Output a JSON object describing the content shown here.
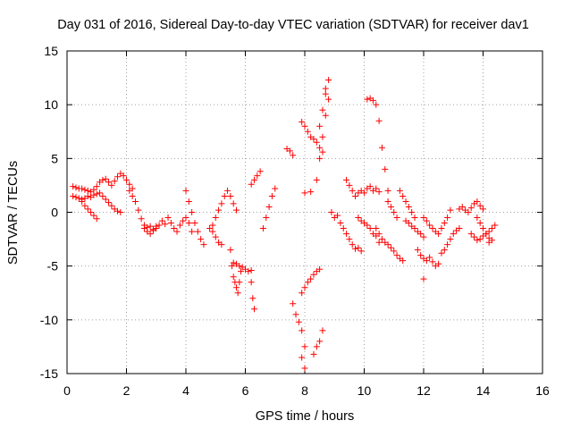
{
  "chart_data": {
    "type": "scatter",
    "title": "Day 031 of 2016, Sidereal Day-to-day VTEC variation (SDTVAR) for receiver dav1",
    "xlabel": "GPS time / hours",
    "ylabel": "SDTVAR / TECUs",
    "xlim": [
      0,
      16
    ],
    "ylim": [
      -15,
      15
    ],
    "xticks": [
      0,
      2,
      4,
      6,
      8,
      10,
      12,
      14,
      16
    ],
    "yticks": [
      -15,
      -10,
      -5,
      0,
      5,
      10,
      15
    ],
    "xtick_labels": [
      "0",
      "2",
      "4",
      "6",
      "8",
      "10",
      "12",
      "14",
      "16"
    ],
    "ytick_labels": [
      "-15",
      "-10",
      "-5",
      "0",
      "5",
      "10",
      "15"
    ],
    "grid": true,
    "marker": "+",
    "color": "#ff0000",
    "series": [
      {
        "name": "SDTVAR",
        "x": [
          0.2,
          0.3,
          0.4,
          0.5,
          0.6,
          0.7,
          0.8,
          0.9,
          1.0,
          1.1,
          1.2,
          1.3,
          1.4,
          1.5,
          1.6,
          1.7,
          1.8,
          1.9,
          2.0,
          2.1,
          2.2,
          0.2,
          0.3,
          0.4,
          0.5,
          0.6,
          0.7,
          0.8,
          0.9,
          1.0,
          1.1,
          1.2,
          1.3,
          1.4,
          1.5,
          1.6,
          1.7,
          1.8,
          0.5,
          0.6,
          0.7,
          0.8,
          0.9,
          1.0,
          2.1,
          2.2,
          2.3,
          2.4,
          2.5,
          2.6,
          2.7,
          2.8,
          2.9,
          3.0,
          3.1,
          3.2,
          3.3,
          2.6,
          2.7,
          2.8,
          2.9,
          3.0,
          3.4,
          3.5,
          3.6,
          3.7,
          3.8,
          3.9,
          4.0,
          4.1,
          4.2,
          4.0,
          4.1,
          4.2,
          4.3,
          4.4,
          4.5,
          4.6,
          4.8,
          4.9,
          5.0,
          5.1,
          5.2,
          5.3,
          5.4,
          5.5,
          5.6,
          5.7,
          4.9,
          5.0,
          5.1,
          5.2,
          5.5,
          5.55,
          5.6,
          5.65,
          5.7,
          5.75,
          5.8,
          5.85,
          5.6,
          5.7,
          5.8,
          5.9,
          6.0,
          6.1,
          6.2,
          6.2,
          6.25,
          6.3,
          6.2,
          6.3,
          6.4,
          6.5,
          6.6,
          6.7,
          6.8,
          6.9,
          7.0,
          7.4,
          7.5,
          7.6,
          7.6,
          7.7,
          7.8,
          7.9,
          8.0,
          7.9,
          8.0,
          7.9,
          8.0,
          8.1,
          8.2,
          8.3,
          8.4,
          8.5,
          8.3,
          8.4,
          8.5,
          8.6,
          7.9,
          8.0,
          8.1,
          8.2,
          8.3,
          8.4,
          8.5,
          8.6,
          8.0,
          8.2,
          8.4,
          8.5,
          8.6,
          8.7,
          8.8,
          8.5,
          8.6,
          8.7,
          8.7,
          8.8,
          8.9,
          9.0,
          9.1,
          9.2,
          9.3,
          9.4,
          9.5,
          9.6,
          9.7,
          9.8,
          9.9,
          9.4,
          9.5,
          9.6,
          9.7,
          9.8,
          9.9,
          10.0,
          10.1,
          10.2,
          10.3,
          10.4,
          10.5,
          9.8,
          9.9,
          10.0,
          10.1,
          10.2,
          10.3,
          10.4,
          10.5,
          10.1,
          10.2,
          10.3,
          10.4,
          10.5,
          10.6,
          10.7,
          10.8,
          10.4,
          10.5,
          10.6,
          10.7,
          10.8,
          10.9,
          11.0,
          11.1,
          11.2,
          11.3,
          10.8,
          10.9,
          11.0,
          11.1,
          11.4,
          11.5,
          11.6,
          11.7,
          11.8,
          11.9,
          12.0,
          11.2,
          11.3,
          11.4,
          11.5,
          11.6,
          11.7,
          11.8,
          11.9,
          12.0,
          12.1,
          12.0,
          12.1,
          12.2,
          12.3,
          12.4,
          12.5,
          12.6,
          12.7,
          12.8,
          12.9,
          12.2,
          12.3,
          12.4,
          12.5,
          12.6,
          12.7,
          12.8,
          12.9,
          13.0,
          13.1,
          13.2,
          13.2,
          13.3,
          13.4,
          13.5,
          13.6,
          13.7,
          13.8,
          13.9,
          14.0,
          13.6,
          13.7,
          13.8,
          13.9,
          14.0,
          14.1,
          14.2,
          14.3,
          13.8,
          13.9,
          14.0,
          14.1,
          14.2,
          14.3,
          14.4,
          12.0,
          14.2
        ],
        "y": [
          2.4,
          2.3,
          2.2,
          2.2,
          2.1,
          2.0,
          1.9,
          2.1,
          2.4,
          2.8,
          3.0,
          3.1,
          2.8,
          2.5,
          2.9,
          3.3,
          3.6,
          3.4,
          3.0,
          2.6,
          2.2,
          1.5,
          1.4,
          1.3,
          1.2,
          1.3,
          1.5,
          1.4,
          1.6,
          1.7,
          1.8,
          1.5,
          1.2,
          0.9,
          0.6,
          0.3,
          0.1,
          0.0,
          1.0,
          0.6,
          0.3,
          0.0,
          -0.3,
          -0.6,
          2.0,
          1.5,
          1.0,
          0.2,
          -0.6,
          -1.2,
          -1.4,
          -1.3,
          -1.6,
          -1.5,
          -1.2,
          -0.8,
          -1.1,
          -1.5,
          -1.8,
          -2.0,
          -1.7,
          -1.3,
          -0.5,
          -1.0,
          -1.5,
          -1.8,
          -1.2,
          -0.8,
          -0.5,
          -1.0,
          -1.8,
          2.0,
          1.0,
          0.0,
          -1.0,
          -1.8,
          -2.5,
          -3.0,
          -1.5,
          -1.2,
          -0.5,
          0.2,
          0.8,
          1.5,
          2.0,
          1.5,
          0.8,
          0.2,
          -1.8,
          -2.3,
          -2.8,
          -3.0,
          -3.5,
          -5.0,
          -6.0,
          -6.5,
          -7.0,
          -7.5,
          -6.5,
          -5.5,
          -4.7,
          -4.8,
          -5.0,
          -5.1,
          -5.3,
          -5.5,
          -5.4,
          -6.5,
          -8.0,
          -9.0,
          2.6,
          3.0,
          3.4,
          3.8,
          -1.5,
          -0.5,
          0.5,
          1.5,
          2.2,
          5.9,
          5.7,
          5.3,
          -8.5,
          -9.5,
          -10.2,
          -11.0,
          -12.5,
          -13.5,
          -14.5,
          -7.5,
          -7.0,
          -6.5,
          -6.2,
          -5.8,
          -5.5,
          -5.3,
          -13.2,
          -12.5,
          -12.0,
          -11.0,
          8.4,
          8.0,
          7.5,
          7.0,
          6.8,
          6.5,
          6.0,
          5.6,
          1.8,
          1.9,
          3.0,
          5.0,
          7.0,
          9.0,
          10.5,
          8.0,
          9.5,
          11.0,
          11.5,
          12.3,
          0.0,
          -0.5,
          -0.3,
          -1.0,
          -1.5,
          -2.0,
          -2.5,
          -3.0,
          -3.4,
          -3.3,
          -3.6,
          3.0,
          2.5,
          2.0,
          1.5,
          1.8,
          2.0,
          1.8,
          2.2,
          2.4,
          2.0,
          2.2,
          1.9,
          -0.5,
          -0.8,
          -1.0,
          -1.2,
          -1.5,
          -2.0,
          -2.2,
          -2.8,
          10.5,
          10.6,
          10.4,
          10.0,
          8.5,
          6.0,
          4.0,
          2.0,
          -1.5,
          -2.0,
          -2.5,
          -2.8,
          -3.0,
          -3.3,
          -3.6,
          -4.0,
          -4.3,
          -4.5,
          1.0,
          0.5,
          0.0,
          -0.5,
          -0.8,
          -1.0,
          -1.3,
          -1.5,
          -1.8,
          -2.0,
          -2.3,
          2.0,
          1.5,
          1.0,
          0.5,
          0.0,
          -0.5,
          -3.5,
          -4.0,
          -4.3,
          -4.5,
          -0.5,
          -0.8,
          -1.2,
          -1.5,
          -1.8,
          -2.0,
          -1.5,
          -1.0,
          -0.5,
          0.2,
          -4.2,
          -4.6,
          -5.0,
          -4.8,
          -3.8,
          -3.5,
          -3.0,
          -2.5,
          -2.0,
          -1.7,
          -1.5,
          0.3,
          0.5,
          0.2,
          0.0,
          0.4,
          0.8,
          1.0,
          0.6,
          0.3,
          -2.0,
          -2.3,
          -2.6,
          -2.5,
          -2.2,
          -2.0,
          -2.4,
          -2.6,
          -0.5,
          -1.0,
          -1.5,
          -2.0,
          -1.8,
          -1.5,
          -1.2,
          -6.2,
          -2.8
        ]
      }
    ]
  }
}
